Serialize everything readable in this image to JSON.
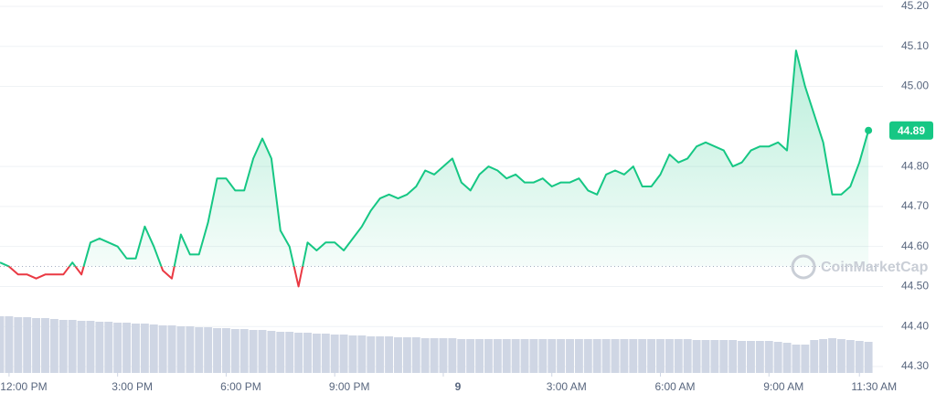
{
  "chart_data": {
    "type": "line",
    "watermark": "CoinMarketCap",
    "xlim": [
      -0.25,
      24.05
    ],
    "ylim": [
      44.3,
      45.2
    ],
    "yticks": [
      {
        "value": 44.3,
        "label": "44.30"
      },
      {
        "value": 44.4,
        "label": "44.40"
      },
      {
        "value": 44.5,
        "label": "44.50"
      },
      {
        "value": 44.6,
        "label": "44.60"
      },
      {
        "value": 44.7,
        "label": "44.70"
      },
      {
        "value": 44.8,
        "label": "44.80"
      },
      {
        "value": 45.0,
        "label": "45.00"
      },
      {
        "value": 45.1,
        "label": "45.10"
      },
      {
        "value": 45.2,
        "label": "45.20"
      }
    ],
    "xticks": [
      {
        "value": 0,
        "label": "12:00 PM"
      },
      {
        "value": 3,
        "label": "3:00 PM"
      },
      {
        "value": 6,
        "label": "6:00 PM"
      },
      {
        "value": 9,
        "label": "9:00 PM"
      },
      {
        "value": 12,
        "label": "9"
      },
      {
        "value": 15,
        "label": "3:00 AM"
      },
      {
        "value": 18,
        "label": "6:00 AM"
      },
      {
        "value": 21,
        "label": "9:00 AM"
      },
      {
        "value": 23.5,
        "label": "11:30 AM"
      }
    ],
    "grid": true,
    "baseline": 44.55,
    "up_color": "#16c784",
    "down_color": "#ea3943",
    "volume_color": "#cfd6e4",
    "x": [
      -0.25,
      0,
      0.25,
      0.5,
      0.75,
      1,
      1.25,
      1.5,
      1.75,
      2,
      2.25,
      2.5,
      2.75,
      3,
      3.25,
      3.5,
      3.75,
      4,
      4.25,
      4.5,
      4.75,
      5,
      5.25,
      5.5,
      5.75,
      6,
      6.25,
      6.5,
      6.75,
      7,
      7.25,
      7.5,
      7.75,
      8,
      8.25,
      8.5,
      8.75,
      9,
      9.25,
      9.5,
      9.75,
      10,
      10.25,
      10.5,
      10.75,
      11,
      11.25,
      11.5,
      11.75,
      12,
      12.25,
      12.5,
      12.75,
      13,
      13.25,
      13.5,
      13.75,
      14,
      14.25,
      14.5,
      14.75,
      15,
      15.25,
      15.5,
      15.75,
      16,
      16.25,
      16.5,
      16.75,
      17,
      17.25,
      17.5,
      17.75,
      18,
      18.25,
      18.5,
      18.75,
      19,
      19.25,
      19.5,
      19.75,
      20,
      20.25,
      20.5,
      20.75,
      21,
      21.25,
      21.5,
      21.75,
      22,
      22.25,
      22.5,
      22.75,
      23,
      23.25,
      23.5,
      23.75
    ],
    "series": [
      {
        "values": [
          44.56,
          44.55,
          44.53,
          44.53,
          44.52,
          44.53,
          44.53,
          44.53,
          44.56,
          44.53,
          44.61,
          44.62,
          44.61,
          44.6,
          44.57,
          44.57,
          44.65,
          44.6,
          44.54,
          44.52,
          44.63,
          44.58,
          44.58,
          44.66,
          44.77,
          44.77,
          44.74,
          44.74,
          44.82,
          44.87,
          44.82,
          44.64,
          44.6,
          44.5,
          44.61,
          44.59,
          44.61,
          44.61,
          44.59,
          44.62,
          44.65,
          44.69,
          44.72,
          44.73,
          44.72,
          44.73,
          44.75,
          44.79,
          44.78,
          44.8,
          44.82,
          44.76,
          44.74,
          44.78,
          44.8,
          44.79,
          44.77,
          44.78,
          44.76,
          44.76,
          44.77,
          44.75,
          44.76,
          44.76,
          44.77,
          44.74,
          44.73,
          44.78,
          44.79,
          44.78,
          44.8,
          44.75,
          44.75,
          44.78,
          44.83,
          44.81,
          44.82,
          44.85,
          44.86,
          44.85,
          44.84,
          44.8,
          44.81,
          44.84,
          44.85,
          44.85,
          44.86,
          44.84,
          45.09,
          45.0,
          44.93,
          44.86,
          44.73,
          44.73,
          44.75,
          44.81,
          44.89
        ]
      }
    ],
    "volume": [
      62,
      62,
      61,
      61,
      60,
      60,
      59,
      58,
      58,
      57,
      57,
      56,
      56,
      55,
      55,
      54,
      54,
      53,
      52,
      52,
      51,
      51,
      50,
      50,
      49,
      49,
      48,
      48,
      47,
      47,
      46,
      45,
      45,
      44,
      44,
      43,
      43,
      42,
      42,
      41,
      41,
      40,
      40,
      40,
      39,
      39,
      39,
      38,
      38,
      38,
      38,
      37,
      37,
      37,
      37,
      37,
      37,
      37,
      37,
      37,
      37,
      37,
      37,
      37,
      37,
      37,
      37,
      37,
      37,
      37,
      37,
      37,
      37,
      37,
      37,
      37,
      37,
      36,
      36,
      36,
      36,
      36,
      35,
      35,
      35,
      35,
      34,
      33,
      31,
      31,
      36,
      37,
      38,
      37,
      36,
      35,
      34
    ]
  }
}
